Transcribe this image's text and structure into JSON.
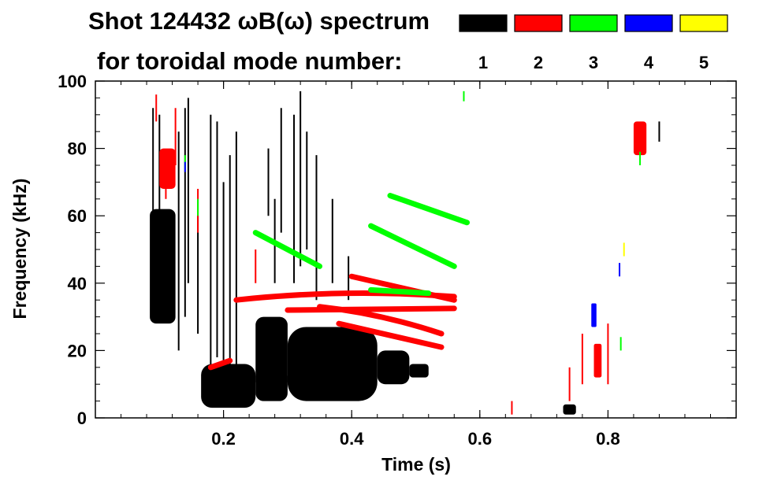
{
  "chart_data": {
    "type": "scatter",
    "title": "Shot 124432 ωB(ω) spectrum",
    "subtitle": "for toroidal mode number:",
    "xlabel": "Time (s)",
    "ylabel": "Frequency (kHz)",
    "xlim": [
      0.0,
      1.0
    ],
    "ylim": [
      0,
      100
    ],
    "x_ticks": [
      0.2,
      0.4,
      0.6,
      0.8
    ],
    "x_tick_labels": [
      "0.2",
      "0.4",
      "0.6",
      "0.8"
    ],
    "y_ticks": [
      0,
      20,
      40,
      60,
      80,
      100
    ],
    "y_tick_labels": [
      "0",
      "20",
      "40",
      "60",
      "80",
      "100"
    ],
    "grid": false,
    "legend_position": "top-right",
    "legend": [
      {
        "label": "1",
        "color": "#000000"
      },
      {
        "label": "2",
        "color": "#ff0000"
      },
      {
        "label": "3",
        "color": "#00ff00"
      },
      {
        "label": "4",
        "color": "#0000ff"
      },
      {
        "label": "5",
        "color": "#ffff00"
      }
    ],
    "series": [
      {
        "mode": "1",
        "color": "#000000",
        "blobs": [
          {
            "t0": 0.085,
            "t1": 0.125,
            "f0": 28,
            "f1": 62
          },
          {
            "t0": 0.165,
            "t1": 0.25,
            "f0": 3,
            "f1": 16
          },
          {
            "t0": 0.25,
            "t1": 0.3,
            "f0": 10,
            "f1": 13
          },
          {
            "t0": 0.25,
            "t1": 0.3,
            "f0": 5,
            "f1": 30
          },
          {
            "t0": 0.3,
            "t1": 0.44,
            "f0": 5,
            "f1": 27
          },
          {
            "t0": 0.44,
            "t1": 0.49,
            "f0": 10,
            "f1": 20
          },
          {
            "t0": 0.49,
            "t1": 0.52,
            "f0": 12,
            "f1": 16
          },
          {
            "t0": 0.73,
            "t1": 0.75,
            "f0": 1,
            "f1": 4
          }
        ],
        "streaks": [
          {
            "t": 0.09,
            "f0": 45,
            "f1": 92
          },
          {
            "t": 0.1,
            "f0": 30,
            "f1": 90
          },
          {
            "t": 0.13,
            "f0": 20,
            "f1": 85
          },
          {
            "t": 0.14,
            "f0": 30,
            "f1": 92
          },
          {
            "t": 0.145,
            "f0": 40,
            "f1": 95
          },
          {
            "t": 0.16,
            "f0": 25,
            "f1": 60
          },
          {
            "t": 0.18,
            "f0": 15,
            "f1": 90
          },
          {
            "t": 0.19,
            "f0": 18,
            "f1": 88
          },
          {
            "t": 0.2,
            "f0": 10,
            "f1": 70
          },
          {
            "t": 0.21,
            "f0": 12,
            "f1": 78
          },
          {
            "t": 0.22,
            "f0": 8,
            "f1": 85
          },
          {
            "t": 0.27,
            "f0": 60,
            "f1": 80
          },
          {
            "t": 0.28,
            "f0": 40,
            "f1": 65
          },
          {
            "t": 0.29,
            "f0": 55,
            "f1": 92
          },
          {
            "t": 0.31,
            "f0": 40,
            "f1": 90
          },
          {
            "t": 0.32,
            "f0": 45,
            "f1": 97
          },
          {
            "t": 0.33,
            "f0": 50,
            "f1": 85
          },
          {
            "t": 0.345,
            "f0": 35,
            "f1": 78
          },
          {
            "t": 0.37,
            "f0": 40,
            "f1": 65
          },
          {
            "t": 0.395,
            "f0": 35,
            "f1": 48
          },
          {
            "t": 0.88,
            "f0": 82,
            "f1": 88
          }
        ]
      },
      {
        "mode": "2",
        "color": "#ff0000",
        "blobs": [
          {
            "t0": 0.1,
            "t1": 0.125,
            "f0": 68,
            "f1": 80
          },
          {
            "t0": 0.778,
            "t1": 0.79,
            "f0": 12,
            "f1": 22
          },
          {
            "t0": 0.84,
            "t1": 0.86,
            "f0": 78,
            "f1": 88
          }
        ],
        "streaks": [
          {
            "t": 0.095,
            "f0": 88,
            "f1": 96
          },
          {
            "t": 0.11,
            "f0": 65,
            "f1": 72
          },
          {
            "t": 0.125,
            "f0": 75,
            "f1": 92
          },
          {
            "t": 0.16,
            "f0": 55,
            "f1": 68
          },
          {
            "t": 0.25,
            "f0": 40,
            "f1": 50
          },
          {
            "t": 0.65,
            "f0": 1,
            "f1": 5
          },
          {
            "t": 0.74,
            "f0": 5,
            "f1": 15
          },
          {
            "t": 0.76,
            "f0": 10,
            "f1": 25
          },
          {
            "t": 0.8,
            "f0": 10,
            "f1": 28
          }
        ],
        "tracks": [
          {
            "t0": 0.22,
            "t1": 0.56,
            "f0": 35,
            "f1": 36,
            "arc": 3
          },
          {
            "t0": 0.3,
            "t1": 0.56,
            "f0": 32,
            "f1": 32.5,
            "arc": 0
          },
          {
            "t0": 0.4,
            "t1": 0.56,
            "f0": 42,
            "f1": 35,
            "arc": 0
          },
          {
            "t0": 0.35,
            "t1": 0.54,
            "f0": 33,
            "f1": 25,
            "arc": 2
          },
          {
            "t0": 0.38,
            "t1": 0.54,
            "f0": 28,
            "f1": 21,
            "arc": 0
          },
          {
            "t0": 0.18,
            "t1": 0.21,
            "f0": 15,
            "f1": 17,
            "arc": 0
          }
        ]
      },
      {
        "mode": "3",
        "color": "#00ff00",
        "blobs": [],
        "streaks": [
          {
            "t": 0.14,
            "f0": 74,
            "f1": 78
          },
          {
            "t": 0.16,
            "f0": 60,
            "f1": 65
          },
          {
            "t": 0.82,
            "f0": 20,
            "f1": 24
          },
          {
            "t": 0.85,
            "f0": 75,
            "f1": 79
          },
          {
            "t": 0.575,
            "f0": 94,
            "f1": 97
          }
        ],
        "tracks": [
          {
            "t0": 0.25,
            "t1": 0.35,
            "f0": 55,
            "f1": 45,
            "arc": 0
          },
          {
            "t0": 0.43,
            "t1": 0.56,
            "f0": 57,
            "f1": 45,
            "arc": 0
          },
          {
            "t0": 0.46,
            "t1": 0.58,
            "f0": 66,
            "f1": 58,
            "arc": 0
          },
          {
            "t0": 0.43,
            "t1": 0.52,
            "f0": 38,
            "f1": 37,
            "arc": 0
          }
        ]
      },
      {
        "mode": "4",
        "color": "#0000ff",
        "blobs": [
          {
            "t0": 0.774,
            "t1": 0.782,
            "f0": 27,
            "f1": 34
          }
        ],
        "streaks": [
          {
            "t": 0.14,
            "f0": 73,
            "f1": 76
          },
          {
            "t": 0.818,
            "f0": 42,
            "f1": 46
          }
        ],
        "tracks": []
      },
      {
        "mode": "5",
        "color": "#ffff00",
        "blobs": [],
        "streaks": [
          {
            "t": 0.825,
            "f0": 48,
            "f1": 52
          }
        ],
        "tracks": []
      }
    ]
  }
}
